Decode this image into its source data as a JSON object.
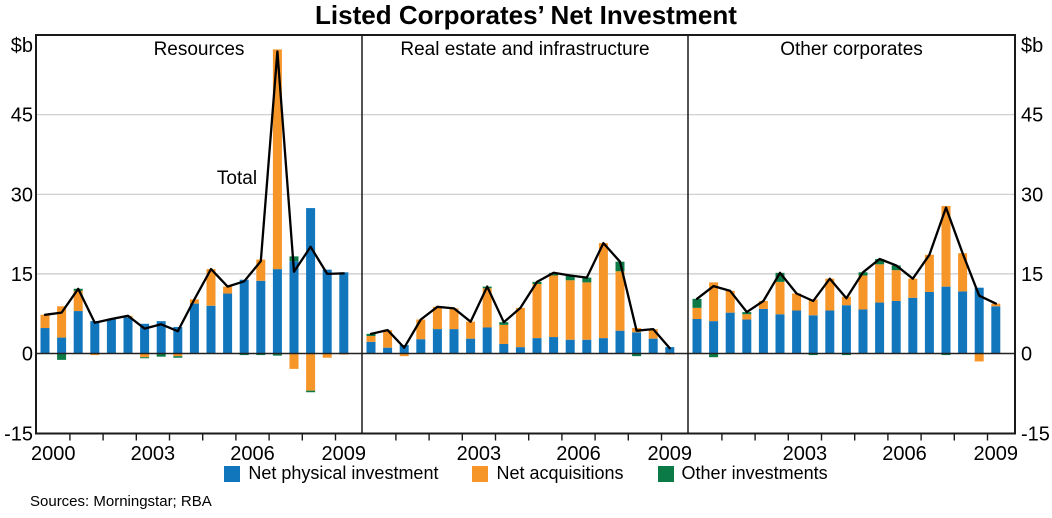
{
  "page": {
    "title": "Listed Corporates’ Net Investment",
    "source_note": "Sources: Morningstar; RBA"
  },
  "chart_data": {
    "type": "bar",
    "subtype": "stacked-semiannual-bars-with-total-line",
    "title": "Listed Corporates’ Net Investment",
    "unit": "$b",
    "axis_unit_label_left": "$b",
    "axis_unit_label_right": "$b",
    "ylim": [
      -15,
      60
    ],
    "ytick_values": [
      45,
      30,
      15,
      0,
      -15
    ],
    "ytick_labels": [
      "45",
      "30",
      "15",
      "0",
      "-15"
    ],
    "gridline_values": [
      45,
      30,
      15
    ],
    "grid_on": true,
    "line_label": "Total",
    "line_color": "#000000",
    "grid_color": "#C9C9C9",
    "axis_color": "#1A1A1A",
    "categories": [
      "2000:H1",
      "2000:H2",
      "2001:H1",
      "2001:H2",
      "2002:H1",
      "2002:H2",
      "2003:H1",
      "2003:H2",
      "2004:H1",
      "2004:H2",
      "2005:H1",
      "2005:H2",
      "2006:H1",
      "2006:H2",
      "2007:H1",
      "2007:H2",
      "2008:H1",
      "2008:H2",
      "2009:H1"
    ],
    "legend": [
      {
        "label": "Net physical investment",
        "color": "#1276BD"
      },
      {
        "label": "Net acquisitions",
        "color": "#F79628"
      },
      {
        "label": "Other investments",
        "color": "#0C7A46"
      }
    ],
    "panels": [
      {
        "label": "Resources",
        "annotation": "Total",
        "year_labels": [
          "2000",
          "2003",
          "2006",
          "2009"
        ],
        "series": [
          {
            "name": "Net physical investment",
            "values": [
              4.8,
              3.0,
              8.0,
              6.1,
              6.5,
              6.8,
              5.6,
              6.1,
              5.0,
              9.4,
              9.0,
              11.3,
              13.9,
              13.7,
              15.9,
              17.4,
              27.4,
              15.8,
              15.3
            ]
          },
          {
            "name": "Net acquisitions",
            "values": [
              2.5,
              5.9,
              3.8,
              -0.3,
              0,
              0.3,
              -0.7,
              0,
              -0.5,
              0.8,
              6.9,
              1.3,
              0,
              4.0,
              41.4,
              -2.9,
              -7.0,
              -0.8,
              -0.2
            ]
          },
          {
            "name": "Other investments",
            "values": [
              0,
              -1.2,
              0.4,
              0,
              0,
              0,
              -0.2,
              -0.6,
              -0.3,
              0,
              0,
              0,
              -0.3,
              -0.3,
              -0.4,
              0.9,
              -0.3,
              0,
              0
            ]
          }
        ],
        "total": [
          7.3,
          7.7,
          12.2,
          5.8,
          6.5,
          7.1,
          4.7,
          5.5,
          4.2,
          10.2,
          15.9,
          12.6,
          13.6,
          17.4,
          56.9,
          15.4,
          20.1,
          15.0,
          15.1
        ]
      },
      {
        "label": "Real estate and infrastructure",
        "annotation": "",
        "year_labels": [
          "2003",
          "2006",
          "2009"
        ],
        "series": [
          {
            "name": "Net physical investment",
            "values": [
              2.2,
              1.1,
              1.6,
              2.7,
              4.6,
              4.6,
              2.8,
              4.9,
              1.8,
              1.2,
              2.9,
              3.1,
              2.6,
              2.6,
              2.9,
              4.3,
              4.0,
              2.8,
              1.2
            ]
          },
          {
            "name": "Net acquisitions",
            "values": [
              1.1,
              3.3,
              -0.5,
              3.7,
              4.2,
              3.9,
              3.2,
              7.4,
              3.6,
              7.4,
              10.2,
              11.6,
              11.2,
              10.8,
              17.9,
              11.2,
              0.8,
              1.8,
              -0.2
            ]
          },
          {
            "name": "Other investments",
            "values": [
              0.4,
              0,
              0,
              0,
              0,
              0,
              0,
              0.3,
              0.5,
              0,
              0.4,
              0.5,
              0.9,
              0.9,
              0,
              1.8,
              -0.5,
              0,
              0
            ]
          }
        ],
        "total": [
          3.7,
          4.4,
          1.1,
          6.4,
          8.8,
          8.5,
          6.0,
          12.6,
          5.9,
          8.6,
          13.5,
          15.2,
          14.7,
          14.3,
          20.8,
          17.3,
          4.3,
          4.6,
          1.0
        ]
      },
      {
        "label": "Other corporates",
        "annotation": "",
        "year_labels": [
          "2003",
          "2006",
          "2009"
        ],
        "series": [
          {
            "name": "Net physical investment",
            "values": [
              6.5,
              6.1,
              7.7,
              6.4,
              8.4,
              7.4,
              8.1,
              7.2,
              8.1,
              9.1,
              8.3,
              9.6,
              9.9,
              10.5,
              11.6,
              12.6,
              11.7,
              12.4,
              8.9
            ]
          },
          {
            "name": "Net acquisitions",
            "values": [
              2.1,
              7.3,
              4.1,
              1.0,
              1.5,
              6.1,
              3.2,
              3.0,
              6.0,
              1.6,
              6.4,
              7.2,
              5.8,
              3.6,
              7.0,
              15.2,
              7.2,
              -1.5,
              0.5
            ]
          },
          {
            "name": "Other investments",
            "values": [
              1.7,
              -0.7,
              0,
              0.4,
              0,
              1.7,
              0,
              -0.3,
              0,
              -0.3,
              0.6,
              1.0,
              0.9,
              0,
              0,
              -0.3,
              0,
              0,
              0
            ]
          }
        ],
        "total": [
          10.3,
          12.7,
          11.8,
          7.8,
          9.9,
          15.2,
          11.3,
          9.9,
          14.1,
          10.4,
          15.3,
          17.8,
          16.6,
          14.1,
          18.6,
          27.5,
          18.9,
          10.9,
          9.4
        ]
      }
    ]
  }
}
